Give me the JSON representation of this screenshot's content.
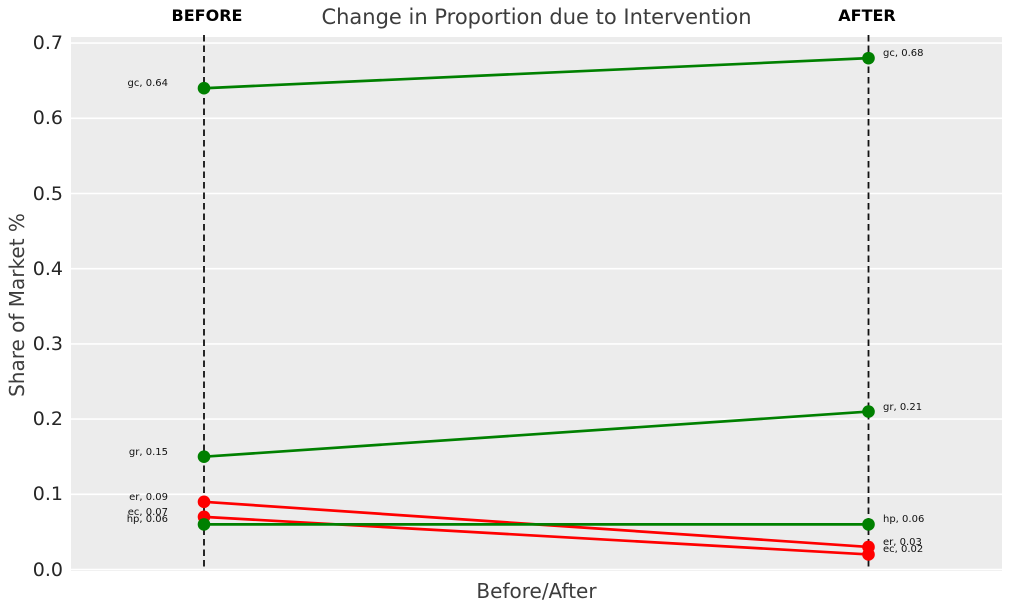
{
  "chart_data": {
    "type": "line",
    "subtype": "slopegraph",
    "title": "Change in Proportion due to Intervention",
    "xlabel": "Before/After",
    "ylabel": "Share of Market %",
    "x_categories": [
      "BEFORE",
      "AFTER"
    ],
    "ylim": [
      0.0,
      0.7
    ],
    "yticks": [
      0.0,
      0.1,
      0.2,
      0.3,
      0.4,
      0.5,
      0.6,
      0.7
    ],
    "ytick_labels": [
      "0.0",
      "0.1",
      "0.2",
      "0.3",
      "0.4",
      "0.5",
      "0.6",
      "0.7"
    ],
    "grid": true,
    "legend": false,
    "series": [
      {
        "name": "gc",
        "values": [
          0.64,
          0.68
        ],
        "color": "#008000",
        "label_before": "gc, 0.64",
        "label_after": "gc, 0.68"
      },
      {
        "name": "gr",
        "values": [
          0.15,
          0.21
        ],
        "color": "#008000",
        "label_before": "gr, 0.15",
        "label_after": "gr, 0.21"
      },
      {
        "name": "er",
        "values": [
          0.09,
          0.03
        ],
        "color": "#ff0000",
        "label_before": "er, 0.09",
        "label_after": "er, 0.03"
      },
      {
        "name": "ec",
        "values": [
          0.07,
          0.02
        ],
        "color": "#ff0000",
        "label_before": "ec, 0.07",
        "label_after": "ec, 0.02"
      },
      {
        "name": "hp",
        "values": [
          0.06,
          0.06
        ],
        "color": "#008000",
        "label_before": "hp, 0.06",
        "label_after": "hp, 0.06"
      }
    ],
    "colors": {
      "increase_line": "#008000",
      "decrease_line": "#ff0000",
      "plot_background": "#ececec",
      "gridline": "#ffffff",
      "guide_line": "#111111",
      "title_text": "#3d3d3d",
      "tick_text": "#262626"
    }
  }
}
